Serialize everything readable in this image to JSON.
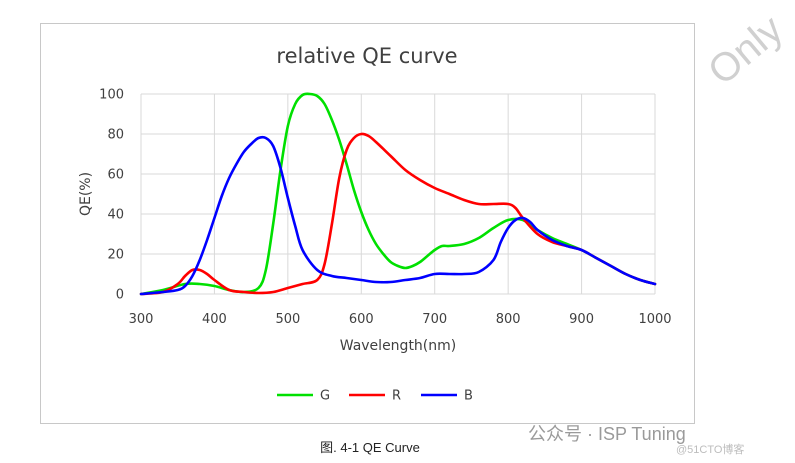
{
  "chart_data": {
    "type": "line",
    "title": "relative QE curve",
    "xlabel": "Wavelength(nm)",
    "ylabel": "QE(%)",
    "xlim": [
      300,
      1000
    ],
    "ylim": [
      0,
      100
    ],
    "xticks": [
      "300",
      "400",
      "500",
      "600",
      "700",
      "800",
      "900",
      "1000"
    ],
    "yticks": [
      "0",
      "20",
      "40",
      "60",
      "80",
      "100"
    ],
    "grid": "vertical and horizontal",
    "legend_position": "bottom",
    "series": [
      {
        "name": "G",
        "color": "#00e000",
        "x": [
          300,
          330,
          360,
          380,
          400,
          420,
          440,
          460,
          470,
          480,
          490,
          500,
          510,
          520,
          530,
          540,
          550,
          560,
          570,
          580,
          590,
          600,
          610,
          620,
          630,
          640,
          650,
          660,
          670,
          680,
          690,
          700,
          710,
          720,
          740,
          760,
          780,
          800,
          820,
          840,
          860,
          880,
          900,
          920,
          940,
          960,
          980,
          1000
        ],
        "y": [
          0,
          2,
          5,
          5,
          4,
          2,
          1,
          3,
          12,
          35,
          62,
          84,
          95,
          99.5,
          100,
          99,
          95,
          87,
          77,
          65,
          52,
          41,
          32,
          25,
          20,
          16,
          14,
          13,
          14,
          16,
          19,
          22,
          24,
          24,
          25,
          28,
          33,
          37,
          37,
          32,
          28,
          25,
          22,
          18,
          14,
          10,
          7,
          5
        ]
      },
      {
        "name": "R",
        "color": "#ff0000",
        "x": [
          300,
          330,
          350,
          360,
          370,
          380,
          390,
          400,
          420,
          440,
          460,
          480,
          500,
          520,
          540,
          550,
          560,
          570,
          580,
          590,
          600,
          610,
          620,
          640,
          660,
          680,
          700,
          720,
          740,
          760,
          780,
          800,
          810,
          820,
          840,
          860,
          880,
          900,
          920,
          940,
          960,
          980,
          1000
        ],
        "y": [
          0,
          1,
          5,
          9,
          12,
          12,
          10,
          7,
          2,
          1,
          0.5,
          1,
          3,
          5,
          7,
          15,
          35,
          58,
          72,
          78,
          80,
          79,
          76,
          69,
          62,
          57,
          53,
          50,
          47,
          45,
          45,
          45,
          43,
          38,
          30,
          26,
          24,
          22,
          18,
          14,
          10,
          7,
          5
        ]
      },
      {
        "name": "B",
        "color": "#0000ff",
        "x": [
          300,
          330,
          350,
          360,
          370,
          380,
          390,
          400,
          410,
          420,
          430,
          440,
          450,
          460,
          470,
          480,
          490,
          500,
          510,
          520,
          540,
          560,
          580,
          600,
          620,
          640,
          660,
          680,
          700,
          720,
          740,
          760,
          780,
          790,
          800,
          810,
          820,
          830,
          840,
          860,
          880,
          900,
          920,
          940,
          960,
          980,
          1000
        ],
        "y": [
          0,
          1,
          2,
          4,
          9,
          17,
          27,
          38,
          49,
          58,
          65,
          71,
          75,
          78,
          78,
          74,
          63,
          48,
          34,
          22,
          12,
          9,
          8,
          7,
          6,
          6,
          7,
          8,
          10,
          10,
          10,
          11,
          17,
          26,
          33,
          37,
          38,
          36,
          32,
          27,
          24,
          22,
          18,
          14,
          10,
          7,
          5
        ]
      }
    ]
  },
  "caption": "图. 4-1 QE Curve",
  "watermarks": {
    "footer": "公众号 · ISP Tuning",
    "footer_site": "@51CTO博客",
    "diagonal": "Only"
  }
}
